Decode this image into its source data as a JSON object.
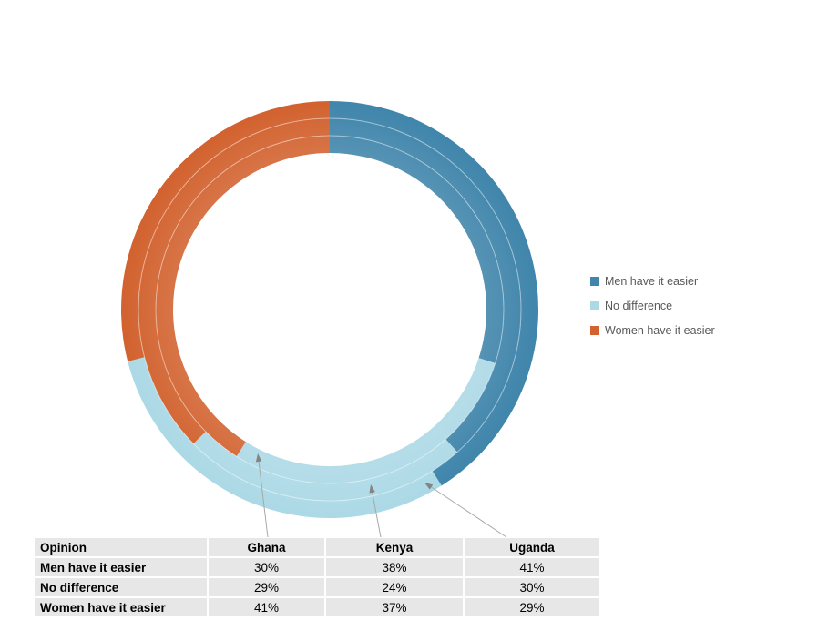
{
  "page": {
    "background": "#ffffff"
  },
  "legend": {
    "items": [
      {
        "label": "Men have it easier",
        "color": "#4085AB"
      },
      {
        "label": "No difference",
        "color": "#ACD9E6"
      },
      {
        "label": "Women have it easier",
        "color": "#D2622F"
      }
    ],
    "text_color": "#595959"
  },
  "table": {
    "headers": [
      "Opinion",
      "Ghana",
      "Kenya",
      "Uganda"
    ],
    "rows": [
      {
        "label": "Men have it easier",
        "values": [
          "30%",
          "38%",
          "41%"
        ]
      },
      {
        "label": "No difference",
        "values": [
          "29%",
          "24%",
          "30%"
        ]
      },
      {
        "label": "Women have it easier",
        "values": [
          "41%",
          "37%",
          "29%"
        ]
      }
    ],
    "cell_background": "#E7E7E7"
  },
  "chart_data": {
    "type": "donut",
    "title": "",
    "categories": [
      "Men have it easier",
      "No difference",
      "Women have it easier"
    ],
    "colors": [
      "#4085AB",
      "#ACD9E6",
      "#D2622F"
    ],
    "rings": [
      {
        "name": "Ghana",
        "position": "inner",
        "values": [
          30,
          29,
          41
        ]
      },
      {
        "name": "Kenya",
        "position": "middle",
        "values": [
          38,
          24,
          37
        ]
      },
      {
        "name": "Uganda",
        "position": "outer",
        "values": [
          41,
          30,
          29
        ]
      }
    ],
    "units": "%",
    "start_angle_deg": 0,
    "direction": "clockwise",
    "legend_position": "right",
    "leader_labels": [
      "Ghana",
      "Kenya",
      "Uganda"
    ],
    "leader_line_color": "#A8A8A8",
    "arrowhead_color": "#848484"
  }
}
